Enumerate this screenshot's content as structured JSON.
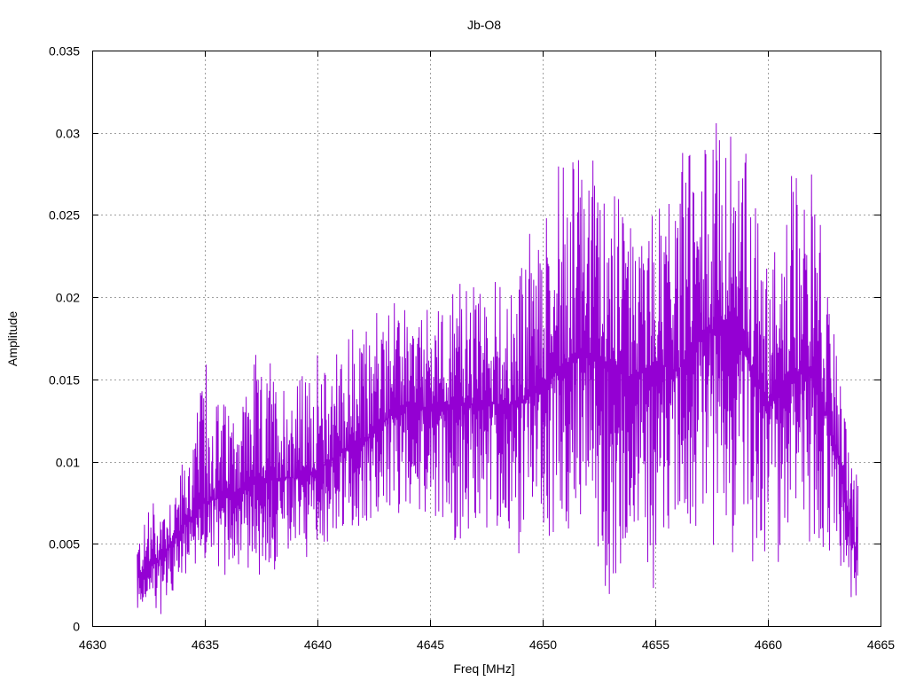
{
  "chart_data": {
    "type": "line",
    "title": "Jb-O8",
    "xlabel": "Freq [MHz]",
    "ylabel": "Amplitude",
    "xlim": [
      4630,
      4665
    ],
    "ylim": [
      0,
      0.035
    ],
    "x_ticks": [
      "4630",
      "4635",
      "4640",
      "4645",
      "4650",
      "4655",
      "4660",
      "4665"
    ],
    "y_ticks": [
      "0",
      "0.005",
      "0.01",
      "0.015",
      "0.02",
      "0.025",
      "0.03",
      "0.035"
    ],
    "grid": true,
    "line_color": "#9400d3",
    "series": [
      {
        "envelope_x": [
          4632,
          4633,
          4634,
          4635,
          4636,
          4637,
          4638,
          4639,
          4640,
          4641,
          4642,
          4643,
          4644,
          4645,
          4646,
          4647,
          4648,
          4649,
          4650,
          4651,
          4652,
          4653,
          4654,
          4655,
          4656,
          4657,
          4658,
          4659,
          4660,
          4661,
          4662,
          4663,
          4664
        ],
        "envelope_center": [
          0.003,
          0.004,
          0.006,
          0.0075,
          0.008,
          0.0085,
          0.009,
          0.009,
          0.0095,
          0.0105,
          0.011,
          0.0125,
          0.0135,
          0.013,
          0.0135,
          0.0135,
          0.0135,
          0.0135,
          0.0145,
          0.016,
          0.0165,
          0.016,
          0.015,
          0.016,
          0.0155,
          0.018,
          0.018,
          0.0165,
          0.0135,
          0.0155,
          0.0155,
          0.011,
          0.004
        ],
        "envelope_max": [
          0.006,
          0.0085,
          0.01,
          0.0165,
          0.0145,
          0.0165,
          0.0165,
          0.0165,
          0.0165,
          0.0175,
          0.0185,
          0.02,
          0.0195,
          0.0205,
          0.021,
          0.021,
          0.021,
          0.022,
          0.027,
          0.029,
          0.0285,
          0.028,
          0.026,
          0.025,
          0.028,
          0.032,
          0.031,
          0.03,
          0.0225,
          0.028,
          0.0285,
          0.0175,
          0.0095
        ],
        "envelope_min": [
          0.001,
          0.0005,
          0.003,
          0.0035,
          0.003,
          0.0035,
          0.002,
          0.0035,
          0.0045,
          0.0045,
          0.005,
          0.0055,
          0.0065,
          0.0055,
          0.005,
          0.005,
          0.0045,
          0.0025,
          0.0045,
          0.0055,
          0.0055,
          0.0015,
          0.0045,
          0.002,
          0.0055,
          0.0055,
          0.003,
          0.0045,
          0.002,
          0.005,
          0.005,
          0.004,
          0.0007
        ]
      }
    ]
  }
}
